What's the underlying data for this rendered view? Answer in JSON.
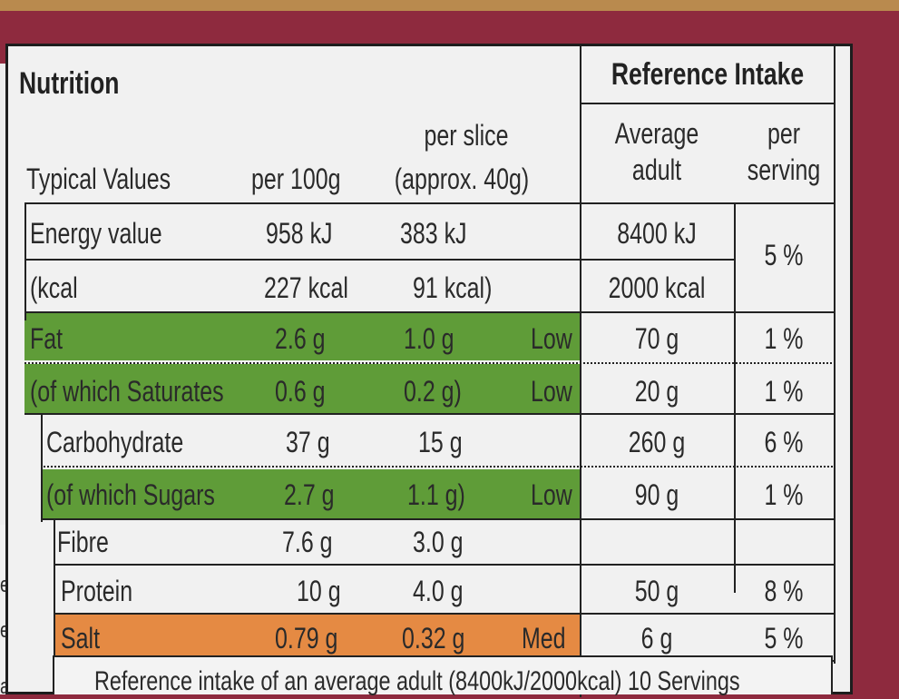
{
  "title": "Nutrition",
  "reference_intake_header": "Reference Intake",
  "col_headers": {
    "typical_values": "Typical Values",
    "per100g": "per 100g",
    "per_slice_line1": "per slice",
    "per_slice_line2": "(approx. 40g)",
    "average_line1": "Average",
    "average_line2": "adult",
    "per_serving_line1": "per",
    "per_serving_line2": "serving"
  },
  "rows": [
    {
      "label": "Energy value",
      "per100g": "958 kJ",
      "per_slice": "383 kJ",
      "level": "",
      "ri": "8400 kJ",
      "pct": "5 %"
    },
    {
      "label": "(kcal",
      "per100g": "227 kcal",
      "per_slice": "91 kcal)",
      "level": "",
      "ri": "2000 kcal",
      "pct": ""
    },
    {
      "label": "Fat",
      "per100g": "2.6 g",
      "per_slice": "1.0 g",
      "level": "Low",
      "ri": "70 g",
      "pct": "1 %"
    },
    {
      "label": "(of which Saturates",
      "per100g": "0.6 g",
      "per_slice": "0.2 g)",
      "level": "Low",
      "ri": "20 g",
      "pct": "1 %"
    },
    {
      "label": "Carbohydrate",
      "per100g": "37 g",
      "per_slice": "15 g",
      "level": "",
      "ri": "260 g",
      "pct": "6 %"
    },
    {
      "label": "(of which Sugars",
      "per100g": "2.7 g",
      "per_slice": "1.1 g)",
      "level": "Low",
      "ri": "90 g",
      "pct": "1 %"
    },
    {
      "label": "Fibre",
      "per100g": "7.6 g",
      "per_slice": "3.0 g",
      "level": "",
      "ri": "",
      "pct": ""
    },
    {
      "label": "Protein",
      "per100g": "10 g",
      "per_slice": "4.0 g",
      "level": "",
      "ri": "50 g",
      "pct": "8 %"
    },
    {
      "label": "Salt",
      "per100g": "0.79 g",
      "per_slice": "0.32 g",
      "level": "Med",
      "ri": "6 g",
      "pct": "5 %"
    }
  ],
  "footer": "Reference intake of an average adult (8400kJ/2000kcal) 10 Servings",
  "side_text": [
    "e",
    "ep",
    "an"
  ],
  "colors": {
    "low": "#5f9c38",
    "med": "#e58a43",
    "packaging": "#8e2a3e"
  }
}
